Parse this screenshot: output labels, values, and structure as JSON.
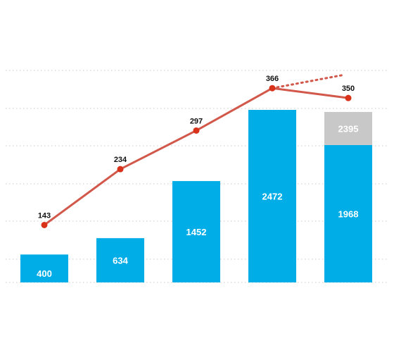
{
  "chart_data": {
    "type": "bar",
    "categories": [
      "",
      "",
      "",
      "",
      ""
    ],
    "bar_series": {
      "values": [
        400,
        634,
        1452,
        2472,
        1968
      ],
      "stacked_top": [
        null,
        null,
        null,
        null,
        2395
      ],
      "color": "#00ADE6",
      "stacked_color": "#C8C8C8"
    },
    "line_series": {
      "values": [
        143,
        234,
        297,
        366,
        350
      ],
      "color": "#D1584A",
      "point_color": "#D8321A",
      "projection_end_value": 388
    },
    "grid": true,
    "legend": "none",
    "title": "",
    "xlabel": "",
    "ylabel": ""
  }
}
